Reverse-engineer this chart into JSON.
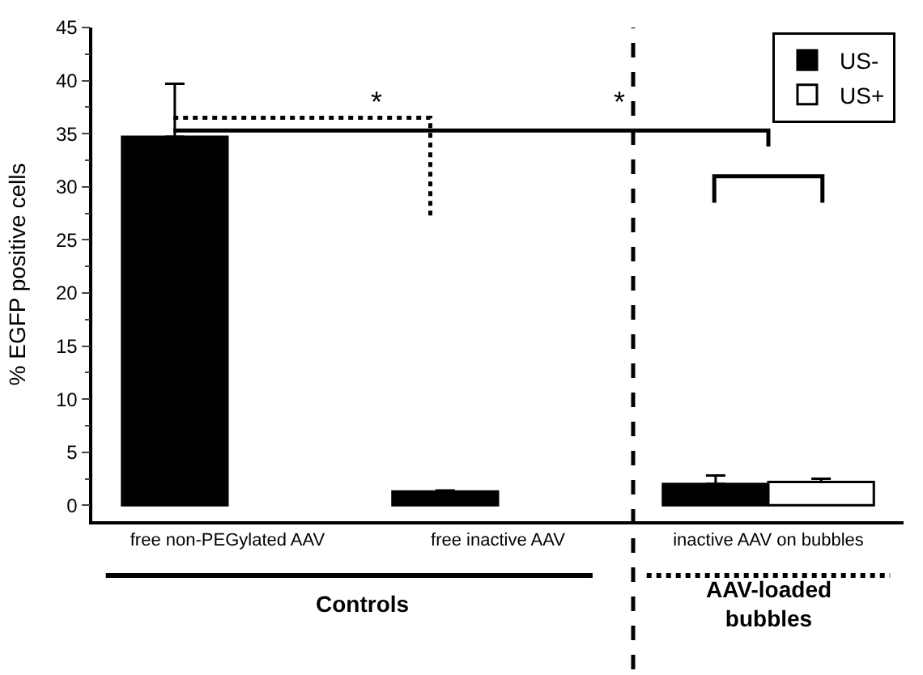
{
  "chart_data": {
    "type": "bar",
    "ylabel": "% EGFP positive cells",
    "categories": [
      "free non-PEGylated AAV",
      "free inactive AAV",
      "inactive AAV on bubbles"
    ],
    "series": [
      {
        "name": "US-",
        "color": "#000000",
        "values": [
          34.7,
          1.3,
          2.0
        ],
        "errors": [
          5.0,
          0.1,
          0.8
        ]
      },
      {
        "name": "US+",
        "color": "#ffffff",
        "values": [
          null,
          null,
          2.2
        ],
        "errors": [
          null,
          null,
          0.3
        ]
      }
    ],
    "ylim": [
      -1.5,
      45
    ],
    "yticks": [
      0,
      5,
      10,
      15,
      20,
      25,
      30,
      35,
      40,
      45
    ],
    "legend": "top right",
    "annotations": [
      "*",
      "*",
      "Controls",
      "AAV-loaded\nbubbles"
    ]
  }
}
